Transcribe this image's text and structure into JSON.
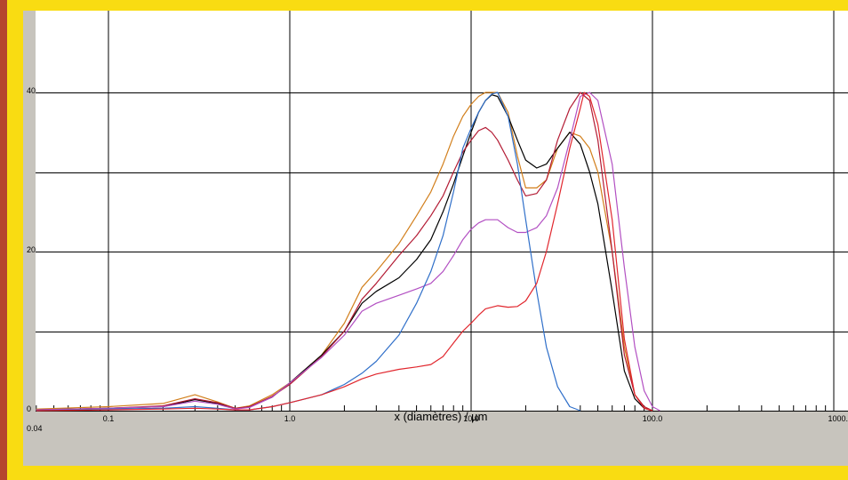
{
  "chart_data": {
    "type": "line",
    "title": "",
    "xlabel": "x (diamètres) / µm",
    "ylabel": "",
    "x_scale": "log",
    "xlim": [
      0.04,
      1000
    ],
    "ylim": [
      0,
      40
    ],
    "x_ticks": [
      {
        "value": 0.1,
        "label": "0.1"
      },
      {
        "value": 1,
        "label": "1.0"
      },
      {
        "value": 10,
        "label": "10.0"
      },
      {
        "value": 100,
        "label": "100.0"
      },
      {
        "value": 1000,
        "label": "1000."
      }
    ],
    "x_min_label": "0.04",
    "y_ticks": [
      {
        "value": 0,
        "label": "0"
      },
      {
        "value": 20,
        "label": "20"
      },
      {
        "value": 40,
        "label": "40"
      }
    ],
    "y_gridlines": [
      10,
      20,
      30,
      40
    ],
    "grid": true,
    "series": [
      {
        "color": "#d27f1c",
        "points": [
          [
            0.04,
            0.2
          ],
          [
            0.1,
            0.5
          ],
          [
            0.2,
            0.9
          ],
          [
            0.3,
            2.0
          ],
          [
            0.4,
            1.1
          ],
          [
            0.5,
            0.3
          ],
          [
            0.6,
            0.6
          ],
          [
            0.8,
            2
          ],
          [
            1.0,
            3.5
          ],
          [
            1.5,
            7
          ],
          [
            2.0,
            11
          ],
          [
            2.5,
            15.5
          ],
          [
            3.0,
            17.5
          ],
          [
            4.0,
            21
          ],
          [
            5.0,
            24.5
          ],
          [
            6.0,
            27.5
          ],
          [
            7.0,
            31
          ],
          [
            8.0,
            34.5
          ],
          [
            9.0,
            37
          ],
          [
            10,
            38.5
          ],
          [
            11,
            39.5
          ],
          [
            12,
            40
          ],
          [
            14,
            40
          ],
          [
            16,
            37.5
          ],
          [
            18,
            32
          ],
          [
            20,
            28
          ],
          [
            23,
            28
          ],
          [
            26,
            29
          ],
          [
            30,
            33
          ],
          [
            35,
            35
          ],
          [
            40,
            34.5
          ],
          [
            45,
            33
          ],
          [
            50,
            30
          ],
          [
            60,
            20
          ],
          [
            70,
            8
          ],
          [
            80,
            2
          ],
          [
            90,
            0.5
          ],
          [
            100,
            0
          ]
        ]
      },
      {
        "color": "#000000",
        "points": [
          [
            0.04,
            0.1
          ],
          [
            0.1,
            0.3
          ],
          [
            0.2,
            0.5
          ],
          [
            0.3,
            1.4
          ],
          [
            0.4,
            0.9
          ],
          [
            0.5,
            0.2
          ],
          [
            0.6,
            0.5
          ],
          [
            0.8,
            1.7
          ],
          [
            1.0,
            3.5
          ],
          [
            1.5,
            7
          ],
          [
            2.0,
            10
          ],
          [
            2.5,
            13.5
          ],
          [
            3.0,
            15
          ],
          [
            4.0,
            16.7
          ],
          [
            5.0,
            19
          ],
          [
            6.0,
            21.5
          ],
          [
            7.0,
            25
          ],
          [
            8.0,
            28.5
          ],
          [
            9.0,
            32
          ],
          [
            10,
            35
          ],
          [
            11,
            37.5
          ],
          [
            12,
            39
          ],
          [
            13,
            39.7
          ],
          [
            14,
            39.5
          ],
          [
            16,
            37
          ],
          [
            18,
            34
          ],
          [
            20,
            31.5
          ],
          [
            23,
            30.5
          ],
          [
            26,
            31
          ],
          [
            30,
            33
          ],
          [
            35,
            35
          ],
          [
            40,
            33.5
          ],
          [
            45,
            30
          ],
          [
            50,
            26
          ],
          [
            60,
            15
          ],
          [
            70,
            5
          ],
          [
            80,
            1.5
          ],
          [
            90,
            0.3
          ],
          [
            100,
            0
          ]
        ]
      },
      {
        "color": "#b31b34",
        "points": [
          [
            0.04,
            0.1
          ],
          [
            0.1,
            0.3
          ],
          [
            0.2,
            0.6
          ],
          [
            0.3,
            1.5
          ],
          [
            0.4,
            1.0
          ],
          [
            0.5,
            0.3
          ],
          [
            0.6,
            0.5
          ],
          [
            0.8,
            1.8
          ],
          [
            1.0,
            3.3
          ],
          [
            1.5,
            6.8
          ],
          [
            2.0,
            10
          ],
          [
            2.5,
            14
          ],
          [
            3.0,
            16
          ],
          [
            4.0,
            19.5
          ],
          [
            5.0,
            22
          ],
          [
            6.0,
            24.5
          ],
          [
            7.0,
            27
          ],
          [
            8.0,
            30
          ],
          [
            9.0,
            32.5
          ],
          [
            10,
            34
          ],
          [
            11,
            35.2
          ],
          [
            12,
            35.6
          ],
          [
            13,
            35
          ],
          [
            14,
            34
          ],
          [
            16,
            31.5
          ],
          [
            18,
            29
          ],
          [
            20,
            27
          ],
          [
            23,
            27.3
          ],
          [
            26,
            29
          ],
          [
            30,
            34
          ],
          [
            35,
            38
          ],
          [
            40,
            40
          ],
          [
            45,
            39
          ],
          [
            50,
            34
          ],
          [
            60,
            20
          ],
          [
            70,
            7
          ],
          [
            80,
            2
          ],
          [
            90,
            0.5
          ],
          [
            100,
            0
          ]
        ]
      },
      {
        "color": "#b24fc2",
        "points": [
          [
            0.04,
            0.1
          ],
          [
            0.1,
            0.3
          ],
          [
            0.2,
            0.5
          ],
          [
            0.3,
            1.2
          ],
          [
            0.4,
            0.8
          ],
          [
            0.5,
            0.2
          ],
          [
            0.6,
            0.4
          ],
          [
            0.8,
            1.7
          ],
          [
            1.0,
            3.5
          ],
          [
            1.5,
            6.7
          ],
          [
            2.0,
            9.5
          ],
          [
            2.5,
            12.5
          ],
          [
            3.0,
            13.5
          ],
          [
            4.0,
            14.5
          ],
          [
            5.0,
            15.3
          ],
          [
            6.0,
            16
          ],
          [
            7.0,
            17.5
          ],
          [
            8.0,
            19.5
          ],
          [
            9.0,
            21.5
          ],
          [
            10,
            22.8
          ],
          [
            11,
            23.6
          ],
          [
            12,
            24
          ],
          [
            14,
            24
          ],
          [
            16,
            23
          ],
          [
            18,
            22.4
          ],
          [
            20,
            22.4
          ],
          [
            23,
            23
          ],
          [
            26,
            24.5
          ],
          [
            30,
            28
          ],
          [
            35,
            34
          ],
          [
            40,
            39.5
          ],
          [
            45,
            40
          ],
          [
            50,
            39
          ],
          [
            60,
            31
          ],
          [
            70,
            18
          ],
          [
            80,
            8
          ],
          [
            90,
            2.5
          ],
          [
            100,
            0.5
          ],
          [
            110,
            0
          ]
        ]
      },
      {
        "color": "#2f6fc9",
        "points": [
          [
            0.04,
            0
          ],
          [
            0.1,
            0.2
          ],
          [
            0.2,
            0.3
          ],
          [
            0.3,
            0.5
          ],
          [
            0.4,
            0.3
          ],
          [
            0.5,
            0.1
          ],
          [
            0.6,
            0.1
          ],
          [
            0.8,
            0.5
          ],
          [
            1.0,
            1
          ],
          [
            1.5,
            2
          ],
          [
            2.0,
            3.3
          ],
          [
            2.5,
            4.7
          ],
          [
            3.0,
            6.2
          ],
          [
            4.0,
            9.5
          ],
          [
            5.0,
            13.5
          ],
          [
            6.0,
            17.5
          ],
          [
            7.0,
            22
          ],
          [
            8.0,
            27.5
          ],
          [
            9.0,
            33
          ],
          [
            10,
            35.5
          ],
          [
            11,
            37.5
          ],
          [
            12,
            39
          ],
          [
            13,
            39.8
          ],
          [
            14,
            40
          ],
          [
            16,
            37
          ],
          [
            18,
            31
          ],
          [
            20,
            24
          ],
          [
            23,
            15
          ],
          [
            26,
            8
          ],
          [
            30,
            3
          ],
          [
            35,
            0.5
          ],
          [
            40,
            0
          ]
        ]
      },
      {
        "color": "#e1262d",
        "points": [
          [
            0.04,
            0
          ],
          [
            0.1,
            0.1
          ],
          [
            0.2,
            0.2
          ],
          [
            0.3,
            0.3
          ],
          [
            0.4,
            0.2
          ],
          [
            0.5,
            0.1
          ],
          [
            0.6,
            0.1
          ],
          [
            0.8,
            0.5
          ],
          [
            1.0,
            1
          ],
          [
            1.5,
            2
          ],
          [
            2.0,
            3
          ],
          [
            2.5,
            4
          ],
          [
            3.0,
            4.6
          ],
          [
            4.0,
            5.2
          ],
          [
            5.0,
            5.5
          ],
          [
            6.0,
            5.8
          ],
          [
            7.0,
            6.8
          ],
          [
            8.0,
            8.5
          ],
          [
            9.0,
            10
          ],
          [
            10,
            11
          ],
          [
            11,
            12
          ],
          [
            12,
            12.8
          ],
          [
            14,
            13.2
          ],
          [
            16,
            13
          ],
          [
            18,
            13.1
          ],
          [
            20,
            13.8
          ],
          [
            23,
            16
          ],
          [
            26,
            20
          ],
          [
            30,
            26
          ],
          [
            35,
            33
          ],
          [
            40,
            38
          ],
          [
            42,
            40
          ],
          [
            45,
            39.5
          ],
          [
            50,
            36
          ],
          [
            60,
            24
          ],
          [
            70,
            9
          ],
          [
            80,
            2
          ],
          [
            90,
            0.3
          ],
          [
            100,
            0
          ]
        ]
      }
    ]
  }
}
